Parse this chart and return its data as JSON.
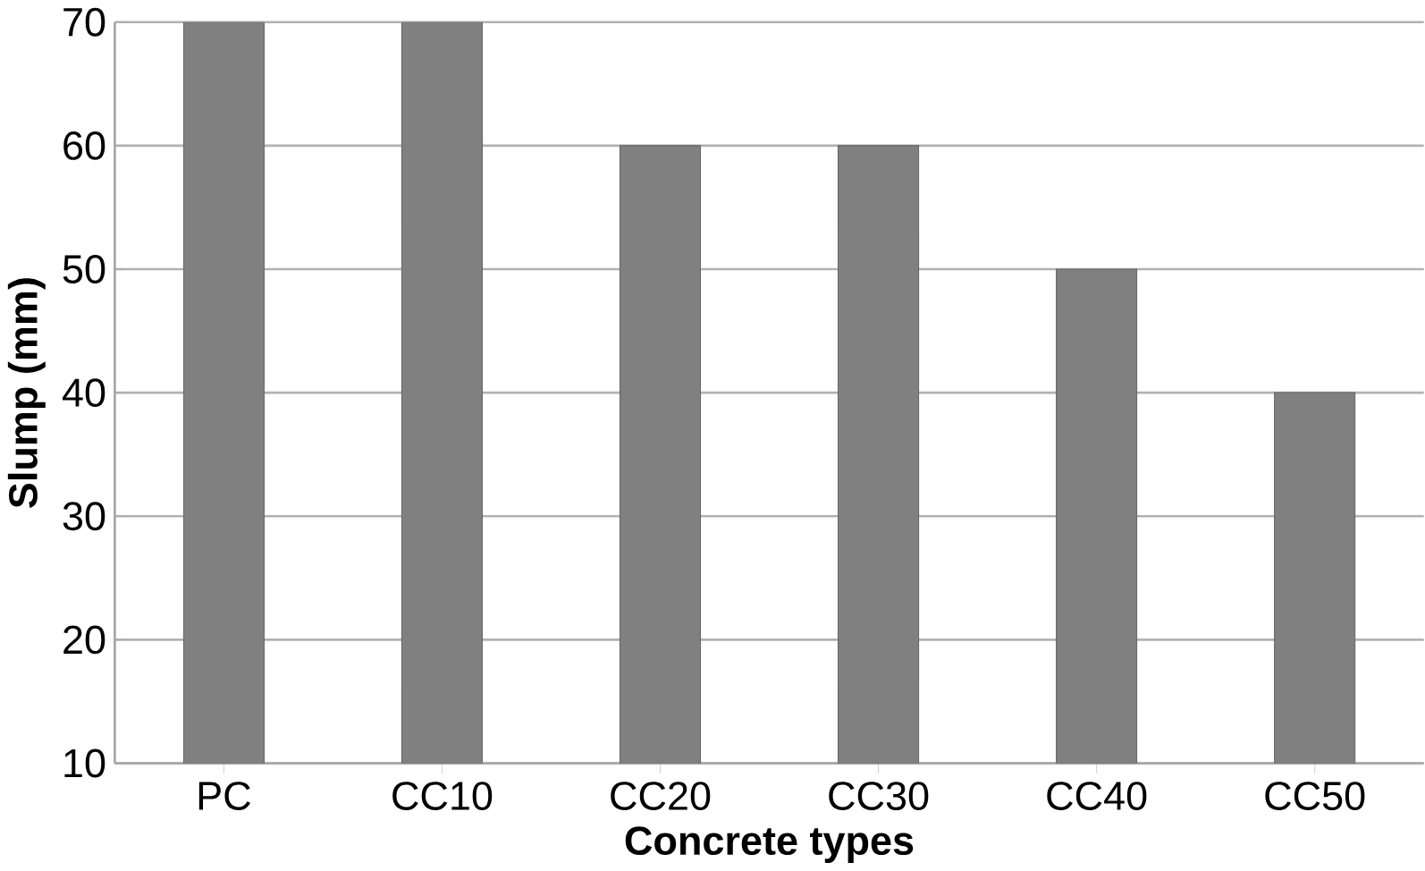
{
  "chart_data": {
    "type": "bar",
    "xlabel": "Concrete types",
    "ylabel": "Slump (mm)",
    "categories": [
      "PC",
      "CC10",
      "CC20",
      "CC30",
      "CC40",
      "CC50"
    ],
    "values": [
      70,
      70,
      60,
      60,
      50,
      40
    ],
    "color": "#808080",
    "ylim": [
      10,
      70
    ],
    "yticks": [
      10,
      20,
      30,
      40,
      50,
      60,
      70
    ],
    "grid": "y"
  }
}
